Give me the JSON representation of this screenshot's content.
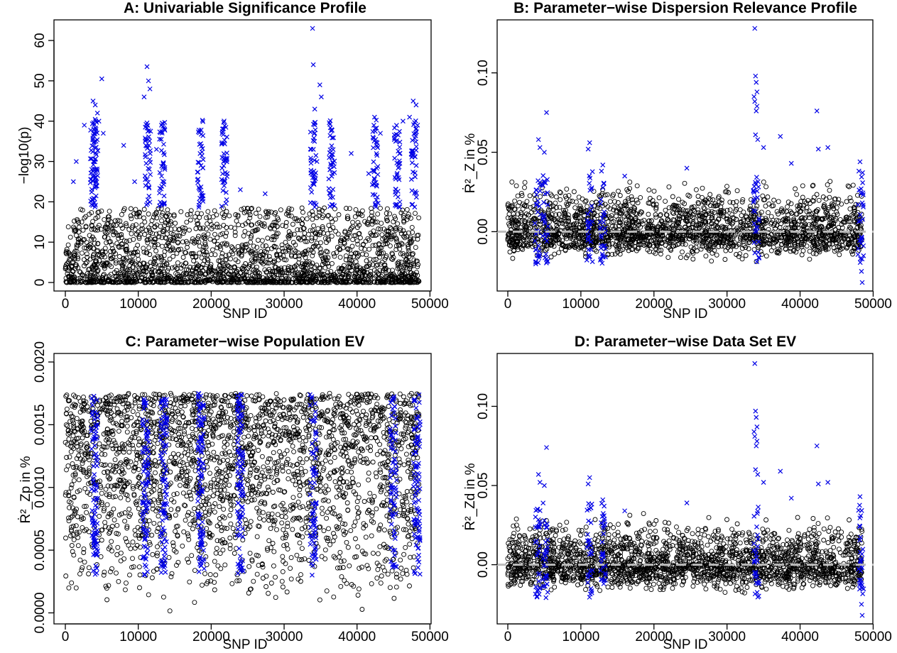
{
  "colors": {
    "background": "#ffffff",
    "nonsignificant": "#000000",
    "significant": "#0000e6",
    "zeroline": "#bbbbbb"
  },
  "chart_data": [
    {
      "type": "scatter",
      "id": "A",
      "title": "A: Univariable Significance Profile",
      "xlabel": "SNP ID",
      "ylabel": "−log10(p)",
      "xlim": [
        0,
        48500
      ],
      "ylim": [
        0,
        63
      ],
      "xticks": [
        "0",
        "10000",
        "20000",
        "30000",
        "40000",
        "50000"
      ],
      "yticks": [
        "0",
        "10",
        "20",
        "30",
        "40",
        "50",
        "60"
      ],
      "zero_line": false,
      "series": [
        {
          "marker": "o",
          "role": "non-significant SNPs",
          "range": [
            0,
            18.5
          ]
        },
        {
          "marker": "x",
          "role": "significant SNPs",
          "points": [
            [
              1500,
              30
            ],
            [
              1100,
              25
            ],
            [
              2600,
              39
            ],
            [
              3800,
              45
            ],
            [
              4100,
              44
            ],
            [
              4400,
              42
            ],
            [
              3900,
              38
            ],
            [
              4200,
              35
            ],
            [
              4600,
              40
            ],
            [
              5000,
              50.5
            ],
            [
              5200,
              37
            ],
            [
              8000,
              34
            ],
            [
              9500,
              25
            ],
            [
              10800,
              46
            ],
            [
              11200,
              53.5
            ],
            [
              11400,
              50
            ],
            [
              11600,
              48
            ],
            [
              12500,
              33
            ],
            [
              13300,
              39.5
            ],
            [
              13600,
              38
            ],
            [
              18600,
              29
            ],
            [
              21500,
              31
            ],
            [
              22200,
              27
            ],
            [
              24000,
              23
            ],
            [
              27400,
              22
            ],
            [
              33900,
              63
            ],
            [
              34000,
              54
            ],
            [
              34200,
              43
            ],
            [
              34500,
              30
            ],
            [
              34900,
              49
            ],
            [
              35100,
              46
            ],
            [
              36600,
              27
            ],
            [
              39200,
              32
            ],
            [
              41600,
              27
            ],
            [
              42400,
              41
            ],
            [
              43200,
              37
            ],
            [
              45300,
              35
            ],
            [
              46300,
              40
            ],
            [
              47200,
              41
            ],
            [
              47700,
              45
            ],
            [
              48100,
              44
            ],
            [
              48300,
              39
            ]
          ]
        }
      ]
    },
    {
      "type": "scatter",
      "id": "B",
      "title": "B: Parameter−wise Dispersion Relevance Profile",
      "xlabel": "SNP ID",
      "ylabel": "Ṙ²_Z in %",
      "xlim": [
        0,
        48500
      ],
      "ylim": [
        -0.032,
        0.128
      ],
      "xticks": [
        "0",
        "10000",
        "20000",
        "30000",
        "40000",
        "50000"
      ],
      "yticks": [
        "0.00",
        "0.05",
        "0.10"
      ],
      "zero_line": true,
      "series": [
        {
          "marker": "o",
          "role": "non-significant SNPs",
          "range": [
            -0.025,
            0.045
          ]
        },
        {
          "marker": "x",
          "role": "significant SNPs",
          "points": [
            [
              4200,
              0.058
            ],
            [
              4400,
              0.053
            ],
            [
              5000,
              0.05
            ],
            [
              5300,
              0.075
            ],
            [
              11200,
              0.056
            ],
            [
              11000,
              0.052
            ],
            [
              13000,
              0.042
            ],
            [
              16000,
              0.035
            ],
            [
              24500,
              0.04
            ],
            [
              33800,
              0.128
            ],
            [
              33900,
              0.098
            ],
            [
              34000,
              0.094
            ],
            [
              34100,
              0.088
            ],
            [
              33700,
              0.085
            ],
            [
              33800,
              0.082
            ],
            [
              34100,
              0.079
            ],
            [
              34000,
              0.076
            ],
            [
              33900,
              0.061
            ],
            [
              34200,
              0.058
            ],
            [
              35000,
              0.053
            ],
            [
              37300,
              0.06
            ],
            [
              38800,
              0.043
            ],
            [
              42300,
              0.076
            ],
            [
              42500,
              0.052
            ],
            [
              43800,
              0.053
            ],
            [
              48200,
              0.044
            ],
            [
              48400,
              -0.025
            ],
            [
              48500,
              -0.032
            ]
          ]
        }
      ]
    },
    {
      "type": "scatter",
      "id": "C",
      "title": "C: Parameter−wise Population EV",
      "xlabel": "SNP ID",
      "ylabel": "Ṙ²_Zp in %",
      "xlim": [
        0,
        48500
      ],
      "ylim": [
        -2e-05,
        0.002
      ],
      "xticks": [
        "0",
        "10000",
        "20000",
        "30000",
        "40000",
        "50000"
      ],
      "yticks": [
        "0.0000",
        "0.0005",
        "0.0010",
        "0.0015",
        "0.0020"
      ],
      "zero_line": false,
      "series": [
        {
          "marker": "o",
          "role": "non-significant SNPs",
          "range": [
            1e-05,
            0.00175
          ]
        },
        {
          "marker": "x",
          "role": "significant SNPs",
          "range": [
            0.0003,
            0.00175
          ]
        }
      ]
    },
    {
      "type": "scatter",
      "id": "D",
      "title": "D: Parameter−wise Data Set EV",
      "xlabel": "SNP ID",
      "ylabel": "Ṙ²_Zd in %",
      "xlim": [
        0,
        48500
      ],
      "ylim": [
        -0.032,
        0.128
      ],
      "xticks": [
        "0",
        "10000",
        "20000",
        "30000",
        "40000",
        "50000"
      ],
      "yticks": [
        "0.00",
        "0.05",
        "0.10"
      ],
      "zero_line": true,
      "series": [
        {
          "marker": "o",
          "role": "non-significant SNPs",
          "range": [
            -0.025,
            0.045
          ]
        },
        {
          "marker": "x",
          "role": "significant SNPs",
          "points": [
            [
              4200,
              0.057
            ],
            [
              4400,
              0.052
            ],
            [
              5000,
              0.05
            ],
            [
              5300,
              0.074
            ],
            [
              11200,
              0.055
            ],
            [
              11000,
              0.051
            ],
            [
              13000,
              0.041
            ],
            [
              16000,
              0.034
            ],
            [
              24500,
              0.039
            ],
            [
              33800,
              0.127
            ],
            [
              33900,
              0.097
            ],
            [
              34000,
              0.093
            ],
            [
              34100,
              0.087
            ],
            [
              33700,
              0.084
            ],
            [
              33800,
              0.081
            ],
            [
              34100,
              0.078
            ],
            [
              34000,
              0.075
            ],
            [
              33900,
              0.06
            ],
            [
              34200,
              0.057
            ],
            [
              35000,
              0.052
            ],
            [
              37300,
              0.059
            ],
            [
              38800,
              0.042
            ],
            [
              42300,
              0.075
            ],
            [
              42500,
              0.051
            ],
            [
              43800,
              0.052
            ],
            [
              48200,
              0.043
            ],
            [
              48400,
              -0.025
            ],
            [
              48500,
              -0.032
            ]
          ]
        }
      ]
    }
  ]
}
